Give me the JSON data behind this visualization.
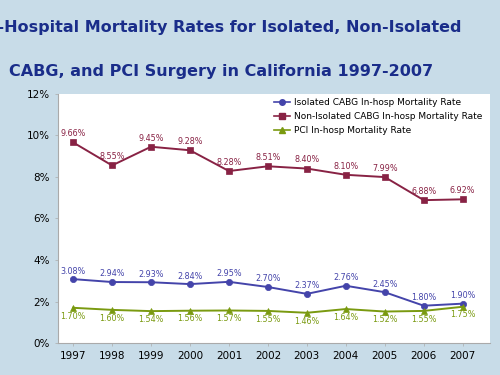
{
  "years": [
    1997,
    1998,
    1999,
    2000,
    2001,
    2002,
    2003,
    2004,
    2005,
    2006,
    2007
  ],
  "isolated_cabg": [
    3.08,
    2.94,
    2.93,
    2.84,
    2.95,
    2.7,
    2.37,
    2.76,
    2.45,
    1.8,
    1.9
  ],
  "non_isolated_cabg": [
    9.66,
    8.55,
    9.45,
    9.28,
    8.28,
    8.51,
    8.4,
    8.1,
    7.99,
    6.88,
    6.92
  ],
  "pci": [
    1.7,
    1.6,
    1.54,
    1.56,
    1.57,
    1.55,
    1.46,
    1.64,
    1.52,
    1.55,
    1.75
  ],
  "isolated_color": "#4444aa",
  "non_isolated_color": "#882244",
  "pci_color": "#7a9a10",
  "title_line1": "In-Hospital Mortality Rates for Isolated, Non-Isolated",
  "title_line2": "CABG, and PCI Surgery in California 1997-2007",
  "title_color": "#1a2d8a",
  "legend_isolated": "Isolated CABG In-hosp Mortality Rate",
  "legend_non_isolated": "Non-Isolated CABG In-hosp Mortality Rate",
  "legend_pci": "PCI In-hosp Mortality Rate",
  "bg_color": "#c8dce8",
  "plot_bg_color": "#ffffff",
  "yticks": [
    0,
    2,
    4,
    6,
    8,
    10,
    12
  ],
  "title_fontsize": 11.5,
  "label_fontsize": 5.8,
  "tick_fontsize": 7.5,
  "legend_fontsize": 6.5
}
